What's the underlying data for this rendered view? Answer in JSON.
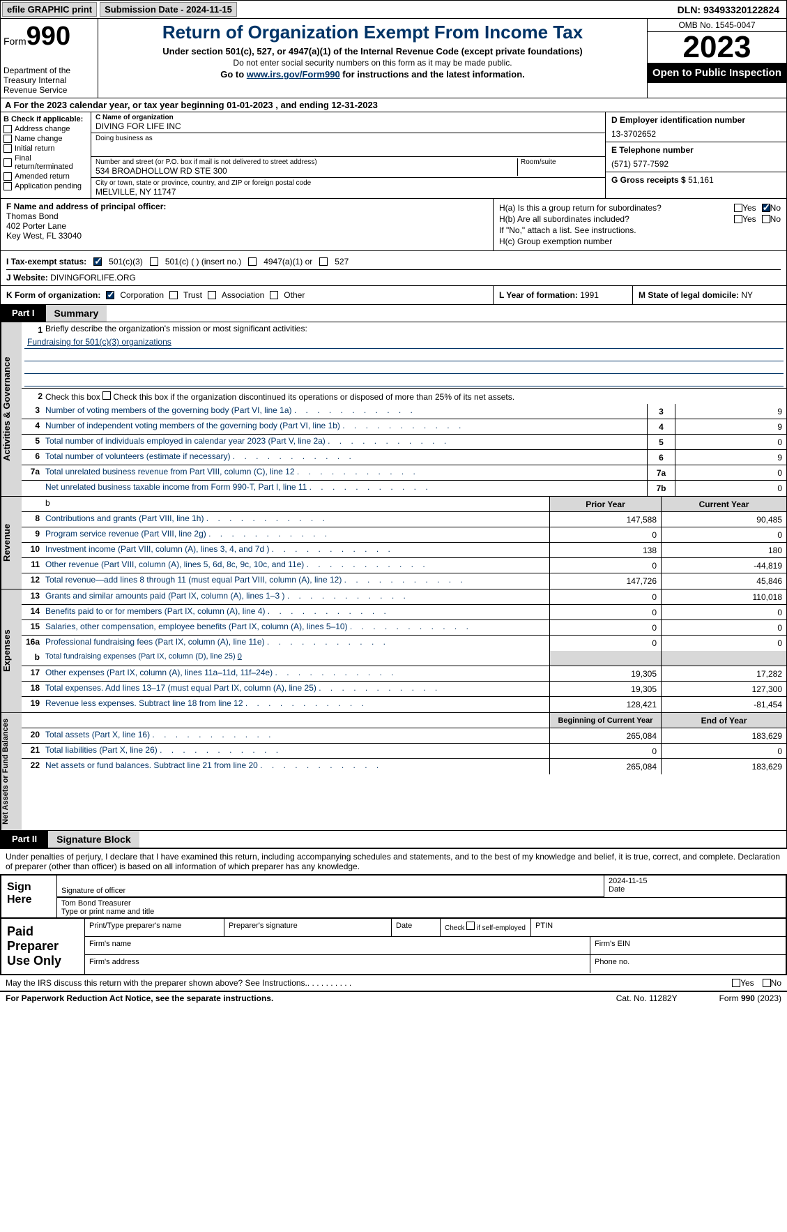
{
  "topbar": {
    "efile": "efile GRAPHIC print",
    "submission": "Submission Date - 2024-11-15",
    "dln": "DLN: 93493320122824"
  },
  "header": {
    "form_label": "Form",
    "form_num": "990",
    "dept": "Department of the Treasury Internal Revenue Service",
    "title": "Return of Organization Exempt From Income Tax",
    "subtitle": "Under section 501(c), 527, or 4947(a)(1) of the Internal Revenue Code (except private foundations)",
    "ssn_note": "Do not enter social security numbers on this form as it may be made public.",
    "goto_prefix": "Go to ",
    "goto_link": "www.irs.gov/Form990",
    "goto_suffix": " for instructions and the latest information.",
    "omb": "OMB No. 1545-0047",
    "year": "2023",
    "inspection": "Open to Public Inspection"
  },
  "row_a": "A For the 2023 calendar year, or tax year beginning 01-01-2023    , and ending 12-31-2023",
  "col_b": {
    "header": "B Check if applicable:",
    "items": [
      "Address change",
      "Name change",
      "Initial return",
      "Final return/terminated",
      "Amended return",
      "Application pending"
    ]
  },
  "col_c": {
    "name_label": "C Name of organization",
    "name": "DIVING FOR LIFE INC",
    "dba_label": "Doing business as",
    "dba": "",
    "street_label": "Number and street (or P.O. box if mail is not delivered to street address)",
    "street": "534 BROADHOLLOW RD STE 300",
    "room_label": "Room/suite",
    "city_label": "City or town, state or province, country, and ZIP or foreign postal code",
    "city": "MELVILLE, NY  11747"
  },
  "col_d": {
    "ein_label": "D Employer identification number",
    "ein": "13-3702652",
    "phone_label": "E Telephone number",
    "phone": "(571) 577-7592",
    "gross_label": "G Gross receipts $",
    "gross": "51,161"
  },
  "officer": {
    "label": "F  Name and address of principal officer:",
    "name": "Thomas Bond",
    "addr1": "402 Porter Lane",
    "addr2": "Key West, FL  33040"
  },
  "section_h": {
    "ha": "H(a)  Is this a group return for subordinates?",
    "hb": "H(b)  Are all subordinates included?",
    "hb_note": "If \"No,\" attach a list. See instructions.",
    "hc": "H(c)  Group exemption number",
    "yes": "Yes",
    "no": "No"
  },
  "tax_status": {
    "label": "I  Tax-exempt status:",
    "c3": "501(c)(3)",
    "c_other": "501(c) (  ) (insert no.)",
    "a1": "4947(a)(1) or",
    "s527": "527"
  },
  "website": {
    "label": "J  Website:",
    "value": "DIVINGFORLIFE.ORG"
  },
  "row_k": {
    "label": "K Form of organization:",
    "corp": "Corporation",
    "trust": "Trust",
    "assoc": "Association",
    "other": "Other"
  },
  "row_l": {
    "label": "L Year of formation:",
    "value": "1991"
  },
  "row_m": {
    "label": "M State of legal domicile:",
    "value": "NY"
  },
  "part1": {
    "tab": "Part I",
    "title": "Summary"
  },
  "summary": {
    "line1_label": "Briefly describe the organization's mission or most significant activities:",
    "line1_text": "Fundraising for 501(c)(3) organizations",
    "line2": "Check this box      if the organization discontinued its operations or disposed of more than 25% of its net assets.",
    "rows_gov": [
      {
        "n": "3",
        "desc": "Number of voting members of the governing body (Part VI, line 1a)",
        "ln": "3",
        "v": "9"
      },
      {
        "n": "4",
        "desc": "Number of independent voting members of the governing body (Part VI, line 1b)",
        "ln": "4",
        "v": "9"
      },
      {
        "n": "5",
        "desc": "Total number of individuals employed in calendar year 2023 (Part V, line 2a)",
        "ln": "5",
        "v": "0"
      },
      {
        "n": "6",
        "desc": "Total number of volunteers (estimate if necessary)",
        "ln": "6",
        "v": "9"
      },
      {
        "n": "7a",
        "desc": "Total unrelated business revenue from Part VIII, column (C), line 12",
        "ln": "7a",
        "v": "0"
      },
      {
        "n": "",
        "desc": "Net unrelated business taxable income from Form 990-T, Part I, line 11",
        "ln": "7b",
        "v": "0"
      }
    ],
    "hdr_prior": "Prior Year",
    "hdr_current": "Current Year",
    "rows_rev": [
      {
        "n": "8",
        "desc": "Contributions and grants (Part VIII, line 1h)",
        "p": "147,588",
        "c": "90,485"
      },
      {
        "n": "9",
        "desc": "Program service revenue (Part VIII, line 2g)",
        "p": "0",
        "c": "0"
      },
      {
        "n": "10",
        "desc": "Investment income (Part VIII, column (A), lines 3, 4, and 7d )",
        "p": "138",
        "c": "180"
      },
      {
        "n": "11",
        "desc": "Other revenue (Part VIII, column (A), lines 5, 6d, 8c, 9c, 10c, and 11e)",
        "p": "0",
        "c": "-44,819"
      },
      {
        "n": "12",
        "desc": "Total revenue—add lines 8 through 11 (must equal Part VIII, column (A), line 12)",
        "p": "147,726",
        "c": "45,846"
      }
    ],
    "rows_exp": [
      {
        "n": "13",
        "desc": "Grants and similar amounts paid (Part IX, column (A), lines 1–3 )",
        "p": "0",
        "c": "110,018"
      },
      {
        "n": "14",
        "desc": "Benefits paid to or for members (Part IX, column (A), line 4)",
        "p": "0",
        "c": "0"
      },
      {
        "n": "15",
        "desc": "Salaries, other compensation, employee benefits (Part IX, column (A), lines 5–10)",
        "p": "0",
        "c": "0"
      },
      {
        "n": "16a",
        "desc": "Professional fundraising fees (Part IX, column (A), line 11e)",
        "p": "0",
        "c": "0"
      }
    ],
    "line16b_desc": "Total fundraising expenses (Part IX, column (D), line 25)",
    "line16b_val": "0",
    "rows_exp2": [
      {
        "n": "17",
        "desc": "Other expenses (Part IX, column (A), lines 11a–11d, 11f–24e)",
        "p": "19,305",
        "c": "17,282"
      },
      {
        "n": "18",
        "desc": "Total expenses. Add lines 13–17 (must equal Part IX, column (A), line 25)",
        "p": "19,305",
        "c": "127,300"
      },
      {
        "n": "19",
        "desc": "Revenue less expenses. Subtract line 18 from line 12",
        "p": "128,421",
        "c": "-81,454"
      }
    ],
    "hdr_begin": "Beginning of Current Year",
    "hdr_end": "End of Year",
    "rows_net": [
      {
        "n": "20",
        "desc": "Total assets (Part X, line 16)",
        "p": "265,084",
        "c": "183,629"
      },
      {
        "n": "21",
        "desc": "Total liabilities (Part X, line 26)",
        "p": "0",
        "c": "0"
      },
      {
        "n": "22",
        "desc": "Net assets or fund balances. Subtract line 21 from line 20",
        "p": "265,084",
        "c": "183,629"
      }
    ]
  },
  "sidelabels": {
    "gov": "Activities & Governance",
    "rev": "Revenue",
    "exp": "Expenses",
    "net": "Net Assets or Fund Balances"
  },
  "part2": {
    "tab": "Part II",
    "title": "Signature Block"
  },
  "perjury": "Under penalties of perjury, I declare that I have examined this return, including accompanying schedules and statements, and to the best of my knowledge and belief, it is true, correct, and complete. Declaration of preparer (other than officer) is based on all information of which preparer has any knowledge.",
  "sign": {
    "here": "Sign Here",
    "sig_label": "Signature of officer",
    "name": "Tom Bond  Treasurer",
    "name_label": "Type or print name and title",
    "date_label": "Date",
    "date": "2024-11-15"
  },
  "paid": {
    "label": "Paid Preparer Use Only",
    "prep_name": "Print/Type preparer's name",
    "prep_sig": "Preparer's signature",
    "date": "Date",
    "self_emp": "Check      if self-employed",
    "ptin": "PTIN",
    "firm_name": "Firm's name",
    "firm_ein": "Firm's EIN",
    "firm_addr": "Firm's address",
    "phone": "Phone no."
  },
  "discuss": "May the IRS discuss this return with the preparer shown above? See Instructions.",
  "footer": {
    "pra": "For Paperwork Reduction Act Notice, see the separate instructions.",
    "cat": "Cat. No. 11282Y",
    "form": "Form 990 (2023)"
  }
}
